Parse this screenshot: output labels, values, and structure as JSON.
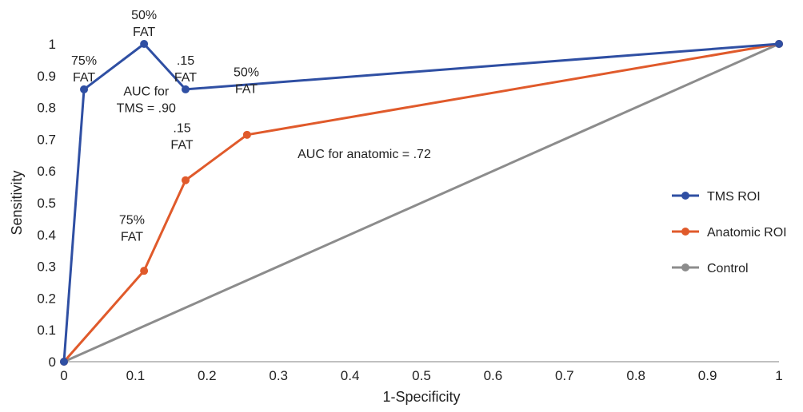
{
  "chart_data": {
    "type": "line",
    "title": "",
    "xlabel": "1-Specificity",
    "ylabel": "Sensitivity",
    "xlim": [
      0,
      1
    ],
    "ylim": [
      0,
      1
    ],
    "xticks": [
      "0",
      "0.1",
      "0.2",
      "0.3",
      "0.4",
      "0.5",
      "0.6",
      "0.7",
      "0.8",
      "0.9",
      "1"
    ],
    "yticks": [
      "0",
      "0.1",
      "0.2",
      "0.3",
      "0.4",
      "0.5",
      "0.6",
      "0.7",
      "0.8",
      "0.9",
      "1"
    ],
    "grid": false,
    "legend_position": "right",
    "series": [
      {
        "name": "TMS ROI",
        "color": "#2f4fa3",
        "points": [
          [
            0,
            0
          ],
          [
            0.028,
            0.857
          ],
          [
            0.112,
            1.0
          ],
          [
            0.17,
            0.857
          ],
          [
            1,
            1
          ]
        ]
      },
      {
        "name": "Anatomic ROI",
        "color": "#e05a2b",
        "points": [
          [
            0,
            0
          ],
          [
            0.112,
            0.286
          ],
          [
            0.17,
            0.571
          ],
          [
            0.256,
            0.714
          ],
          [
            1,
            1
          ]
        ]
      },
      {
        "name": "Control",
        "color": "#8c8c8c",
        "points": [
          [
            0,
            0
          ],
          [
            1,
            1
          ]
        ]
      }
    ],
    "annotations": [
      {
        "lines": [
          "75%",
          "FAT"
        ],
        "x": 0.028,
        "y": 0.857
      },
      {
        "lines": [
          "50%",
          "FAT"
        ],
        "x": 0.112,
        "y": 1.0
      },
      {
        "lines": [
          ".15",
          "FAT"
        ],
        "x": 0.17,
        "y": 0.857
      },
      {
        "lines": [
          "AUC for",
          "TMS = .90"
        ],
        "x": 0.115,
        "y": 0.76
      },
      {
        "lines": [
          "75%",
          "FAT"
        ],
        "x": 0.095,
        "y": 0.355
      },
      {
        "lines": [
          ".15",
          "FAT"
        ],
        "x": 0.165,
        "y": 0.645
      },
      {
        "lines": [
          "50%",
          "FAT"
        ],
        "x": 0.255,
        "y": 0.82
      },
      {
        "lines": [
          "AUC for anatomic = .72"
        ],
        "x": 0.42,
        "y": 0.615
      }
    ]
  }
}
